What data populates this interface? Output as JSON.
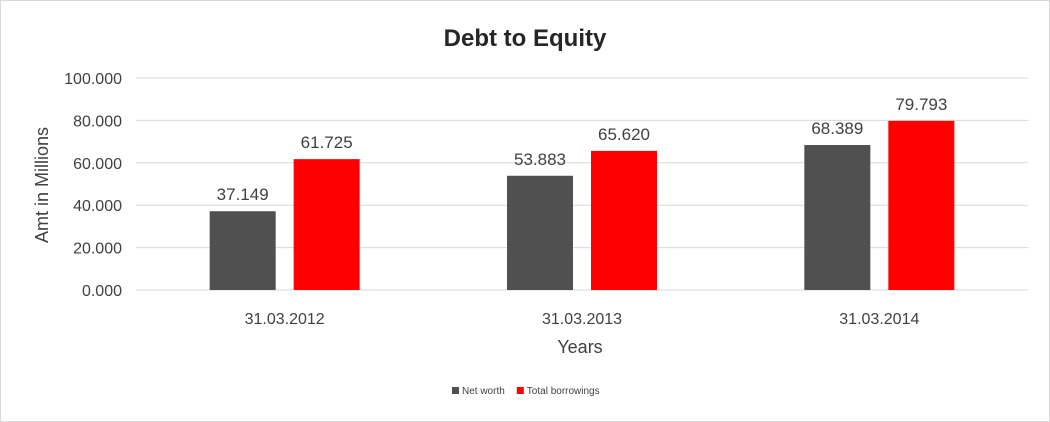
{
  "chart_data": {
    "type": "bar",
    "title": "Debt to Equity",
    "xlabel": "Years",
    "ylabel": "Amt in Millions",
    "categories": [
      "31.03.2012",
      "31.03.2013",
      "31.03.2014"
    ],
    "series": [
      {
        "name": "Net worth",
        "values": [
          37.149,
          53.883,
          68.389
        ],
        "labels": [
          "37.149",
          "53.883",
          "68.389"
        ],
        "color": "#505050"
      },
      {
        "name": "Total borrowings",
        "values": [
          61.725,
          65.62,
          79.793
        ],
        "labels": [
          "61.725",
          "65.620",
          "79.793"
        ],
        "color": "#ff0000"
      }
    ],
    "ylim": [
      0,
      100
    ],
    "yticks": [
      "0.000",
      "20.000",
      "40.000",
      "60.000",
      "80.000",
      "100.000"
    ],
    "ytick_values": [
      0,
      20,
      40,
      60,
      80,
      100
    ],
    "grid": true,
    "gridline_color": "#d9d9d9",
    "legend_position": "bottom"
  }
}
